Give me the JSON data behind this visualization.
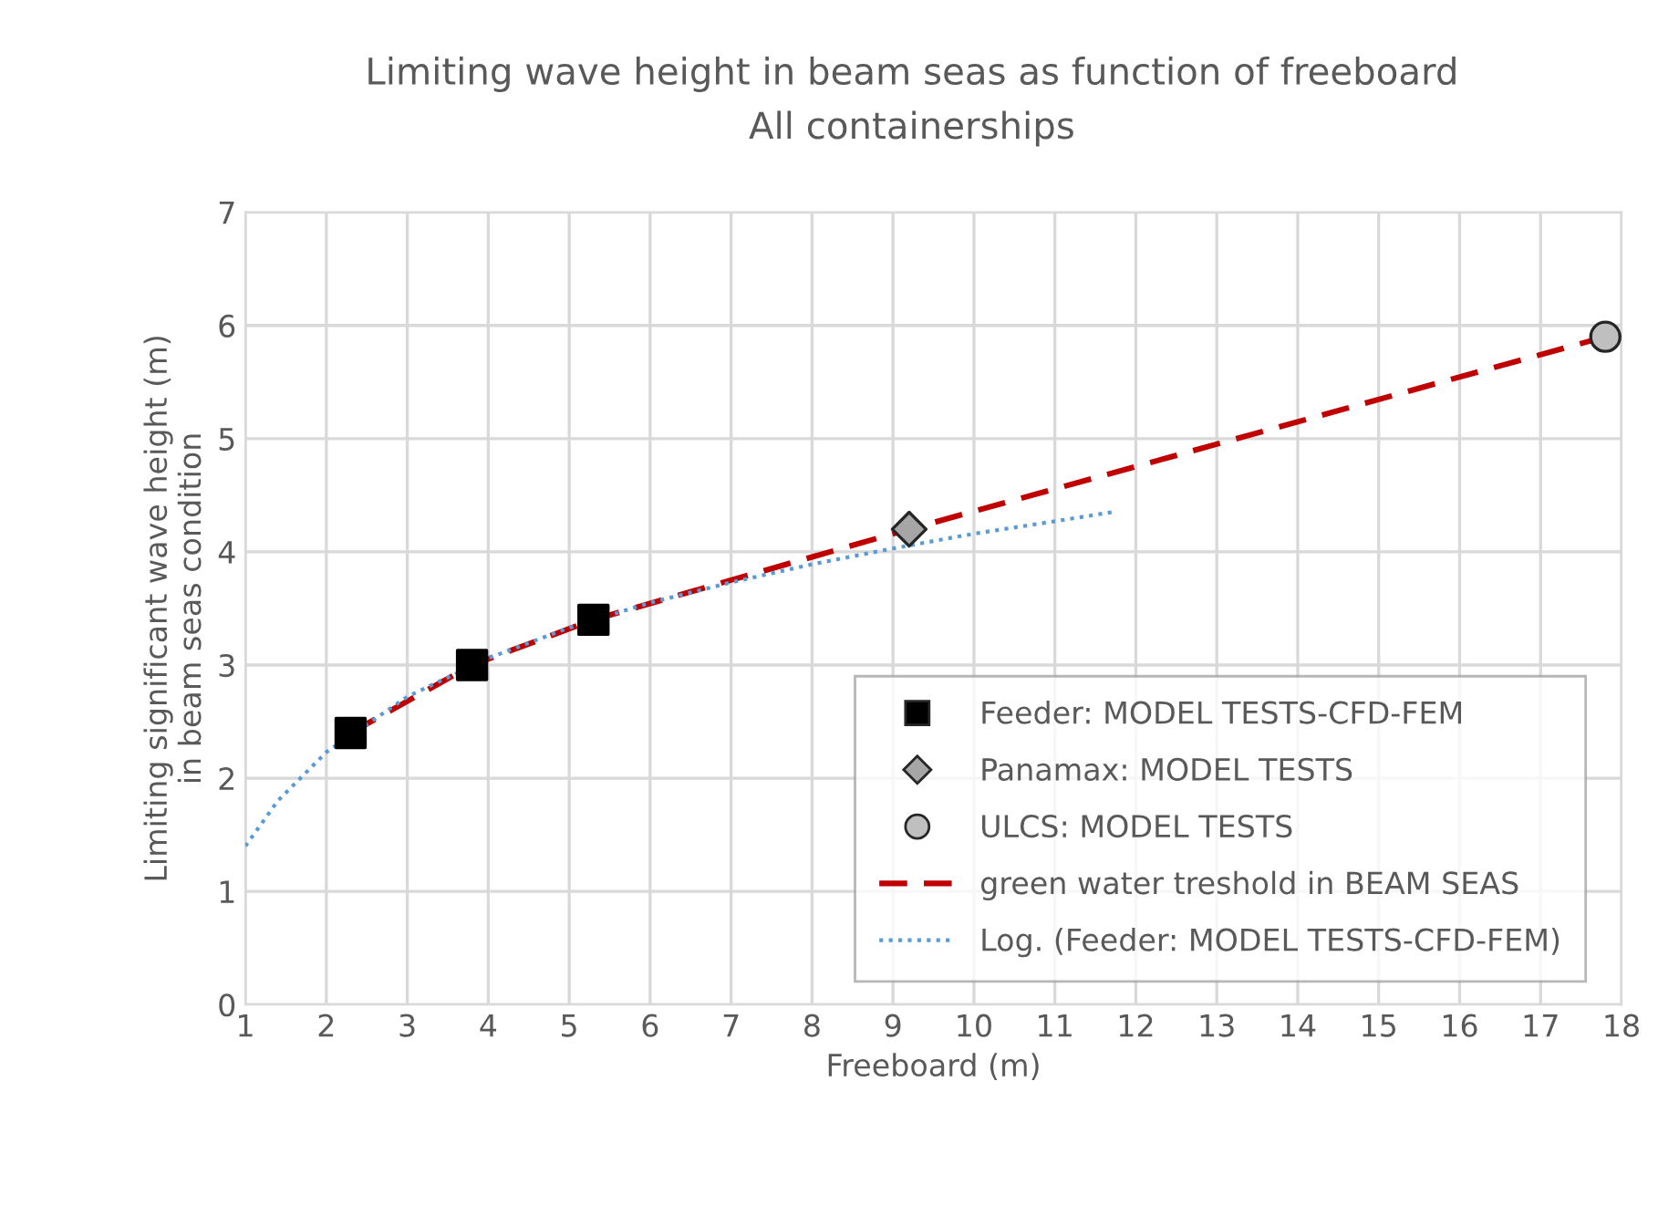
{
  "chart_data": {
    "type": "scatter",
    "title": "Limiting wave height in beam seas as function of freeboard",
    "subtitle": "All containerships",
    "xlabel": "Freeboard (m)",
    "ylabel": "Limiting significant wave height (m)\nin beam seas condition",
    "xlim": [
      1,
      18
    ],
    "xticks": [
      1,
      2,
      3,
      4,
      5,
      6,
      7,
      8,
      9,
      10,
      11,
      12,
      13,
      14,
      15,
      16,
      17,
      18
    ],
    "ylim": [
      0,
      7
    ],
    "yticks": [
      0,
      1,
      2,
      3,
      4,
      5,
      6,
      7
    ],
    "grid": true,
    "legend": "bottom right",
    "series": [
      {
        "name": "Feeder: MODEL TESTS-CFD-FEM",
        "marker": "square",
        "color": "#000000",
        "x": [
          2.3,
          3.8,
          5.3
        ],
        "values": [
          2.4,
          3.0,
          3.4
        ]
      },
      {
        "name": "Panamax: MODEL TESTS",
        "marker": "diamond",
        "color": "#a6a6a6",
        "x": [
          9.2
        ],
        "values": [
          4.2
        ]
      },
      {
        "name": "ULCS: MODEL TESTS",
        "marker": "circle",
        "color": "#bfbfbf",
        "x": [
          17.8
        ],
        "values": [
          5.9
        ]
      },
      {
        "name": "green water treshold in BEAM SEAS",
        "type": "line",
        "line_style": "dashed",
        "color": "#c00000",
        "x": [
          2.3,
          3.8,
          5.3,
          7,
          9.2,
          17.8
        ],
        "values": [
          2.4,
          3.0,
          3.4,
          3.75,
          4.2,
          5.9
        ]
      },
      {
        "name": "Log. (Feeder: MODEL TESTS-CFD-FEM)",
        "type": "line",
        "line_style": "dotted",
        "color": "#5b9bd5",
        "x": [
          1,
          1.4,
          2,
          3,
          4,
          5,
          6,
          7,
          8,
          9,
          10,
          11,
          11.7
        ],
        "values": [
          1.4,
          1.8,
          2.23,
          2.72,
          3.06,
          3.33,
          3.55,
          3.73,
          3.89,
          4.03,
          4.16,
          4.27,
          4.35
        ]
      }
    ]
  }
}
